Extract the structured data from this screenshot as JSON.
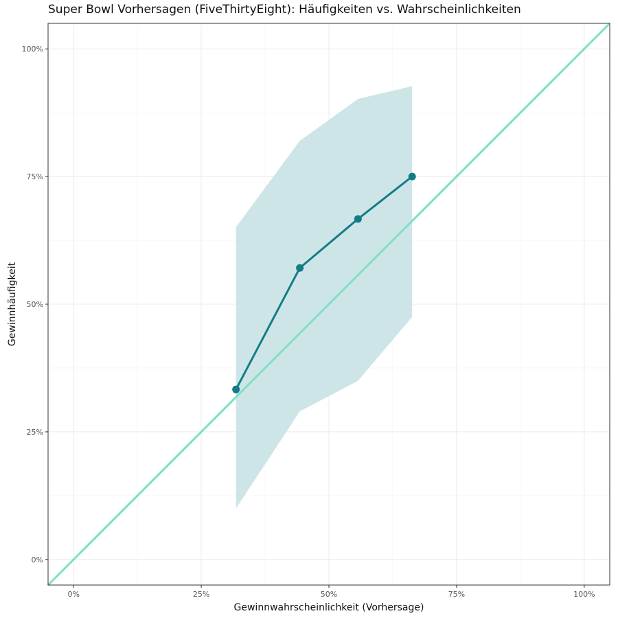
{
  "chart_data": {
    "type": "line",
    "title": "Super Bowl Vorhersagen (FiveThirtyEight): Häufigkeiten vs. Wahrscheinlichkeiten",
    "xlabel": "Gewinnwahrscheinlichkeit (Vorhersage)",
    "ylabel": "Gewinnhäufigkeit",
    "xlim": [
      -0.05,
      1.05
    ],
    "ylim": [
      -0.05,
      1.05
    ],
    "x_ticks": [
      0,
      0.25,
      0.5,
      0.75,
      1.0
    ],
    "x_tick_labels": [
      "0%",
      "25%",
      "50%",
      "75%",
      "100%"
    ],
    "y_ticks": [
      0,
      0.25,
      0.5,
      0.75,
      1.0
    ],
    "y_tick_labels": [
      "0%",
      "25%",
      "50%",
      "75%",
      "100%"
    ],
    "grid": true,
    "series": [
      {
        "x": [
          0.318,
          0.443,
          0.557,
          0.663
        ],
        "y": [
          0.333,
          0.571,
          0.667,
          0.75
        ],
        "lower": [
          0.1,
          0.29,
          0.35,
          0.475
        ],
        "upper": [
          0.651,
          0.82,
          0.902,
          0.927
        ],
        "color": "#147C86",
        "band_color": "#CBE4E7"
      }
    ],
    "reference_line": {
      "x": [
        -0.05,
        1.05
      ],
      "y": [
        -0.05,
        1.05
      ],
      "color": "#7EDFC2"
    }
  }
}
